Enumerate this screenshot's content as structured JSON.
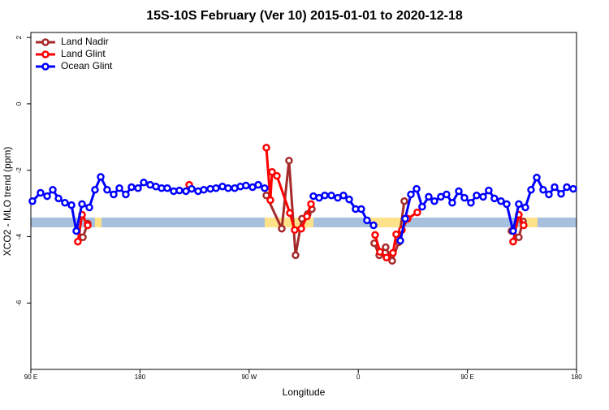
{
  "chart_data": {
    "type": "line",
    "title": "15S-10S February (Ver 10)   2015-01-01 to 2020-12-18",
    "x_label": "Longitude",
    "y_label": "XCO2 - MLO trend (ppm)",
    "xlim": [
      90,
      540
    ],
    "ylim": [
      -8,
      2.15
    ],
    "xticks": [
      {
        "value": 90,
        "label": "90 E"
      },
      {
        "value": 180,
        "label": "180"
      },
      {
        "value": 270,
        "label": "90 W"
      },
      {
        "value": 360,
        "label": "0"
      },
      {
        "value": 450,
        "label": "90 E"
      },
      {
        "value": 540,
        "label": "180"
      }
    ],
    "yticks": [
      2,
      0,
      -2,
      -4,
      -6
    ],
    "legend": "top-left",
    "series": [
      {
        "name": "Land Nadir",
        "color": "#a52a2a",
        "x": [
          128.2,
          132.9,
          136.9,
          200,
          284.2,
          296.9,
          302.9,
          308.3,
          313.6,
          318.3,
          321.7,
          380,
          373.2,
          377.3,
          382.6,
          388.0,
          393.3,
          398.0,
          450,
          486.4,
          492.4,
          495.8
        ],
        "values": [
          -3.83,
          -4.02,
          -3.61,
          null,
          -2.76,
          -3.76,
          -1.71,
          -4.56,
          -3.46,
          -3.32,
          -3.17,
          null,
          -4.2,
          -4.56,
          -4.32,
          -4.73,
          -4.17,
          -2.93,
          null,
          -3.83,
          -4.02,
          -3.54
        ]
      },
      {
        "name": "Land Glint",
        "color": "#ff0000",
        "x": [
          128.8,
          132.2,
          136.9,
          180,
          220.6,
          270,
          284.2,
          287.5,
          288.9,
          292.9,
          303.6,
          307.6,
          313.0,
          317.7,
          321.0,
          360,
          373.9,
          377.9,
          383.3,
          388.6,
          391.3,
          396.0,
          400.7,
          408.7,
          450,
          487.7,
          492.4,
          496.4
        ],
        "values": [
          -4.15,
          -3.34,
          -3.66,
          null,
          -2.44,
          null,
          -1.32,
          -2.9,
          -2.05,
          -2.17,
          -3.29,
          -3.8,
          -3.76,
          -3.39,
          -3.02,
          null,
          -3.95,
          -4.46,
          -4.63,
          -4.49,
          -3.93,
          -3.8,
          -3.46,
          -3.27,
          null,
          -4.15,
          -3.34,
          -3.66
        ]
      },
      {
        "name": "Ocean Glint",
        "color": "#0000ff",
        "x": [
          91.3,
          98.0,
          103.4,
          108.1,
          112.8,
          118.1,
          123.5,
          127.5,
          132.2,
          138.2,
          142.9,
          147.6,
          152.9,
          158.3,
          163.0,
          168.3,
          173.0,
          178.4,
          183.1,
          188.4,
          193.1,
          197.8,
          202.5,
          207.8,
          212.5,
          217.9,
          222.6,
          227.9,
          232.6,
          238.0,
          242.7,
          248.0,
          252.7,
          258.1,
          262.8,
          267.4,
          272.8,
          277.5,
          282.8,
          300,
          323.0,
          327.7,
          332.4,
          337.8,
          343.1,
          347.8,
          352.5,
          357.8,
          362.5,
          367.2,
          372.6,
          380,
          394.7,
          398.7,
          403.4,
          408.1,
          412.7,
          418.1,
          422.8,
          428.1,
          432.8,
          437.5,
          442.9,
          447.6,
          452.9,
          457.6,
          463.0,
          467.6,
          472.3,
          477.7,
          482.4,
          487.7,
          492.4,
          497.8,
          502.5,
          507.2,
          512.5,
          517.2,
          521.9,
          527.3,
          532.0,
          537.3
        ],
        "values": [
          -2.93,
          -2.68,
          -2.78,
          -2.59,
          -2.85,
          -2.98,
          -3.05,
          -3.83,
          -3.02,
          -3.12,
          -2.59,
          -2.2,
          -2.59,
          -2.73,
          -2.54,
          -2.73,
          -2.51,
          -2.54,
          -2.37,
          -2.44,
          -2.49,
          -2.54,
          -2.54,
          -2.63,
          -2.61,
          -2.63,
          -2.56,
          -2.63,
          -2.59,
          -2.56,
          -2.54,
          -2.49,
          -2.54,
          -2.54,
          -2.49,
          -2.46,
          -2.51,
          -2.44,
          -2.54,
          null,
          -2.78,
          -2.83,
          -2.76,
          -2.76,
          -2.83,
          -2.76,
          -2.88,
          -3.17,
          -3.17,
          -3.51,
          -3.66,
          null,
          -4.12,
          -3.46,
          -2.73,
          -2.56,
          -3.1,
          -2.8,
          -2.93,
          -2.8,
          -2.73,
          -2.98,
          -2.63,
          -2.83,
          -2.98,
          -2.76,
          -2.8,
          -2.61,
          -2.85,
          -2.93,
          -3.02,
          -3.83,
          -3.02,
          -3.12,
          -2.59,
          -2.22,
          -2.59,
          -2.73,
          -2.51,
          -2.71,
          -2.51,
          -2.56
        ]
      }
    ]
  }
}
